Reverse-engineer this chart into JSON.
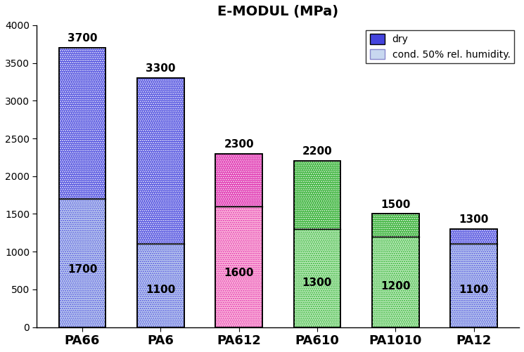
{
  "categories": [
    "PA66",
    "PA6",
    "PA612",
    "PA610",
    "PA1010",
    "PA12"
  ],
  "bottom_values": [
    1700,
    1100,
    1600,
    1300,
    1200,
    1100
  ],
  "top_values": [
    2000,
    2200,
    700,
    900,
    300,
    200
  ],
  "totals": [
    3700,
    3300,
    2300,
    2200,
    1500,
    1300
  ],
  "bottom_colors": [
    "#c8d8f0",
    "#c8d8f0",
    "#ffc8e0",
    "#c8f0c8",
    "#c8f0c8",
    "#c8d8f0"
  ],
  "top_colors": [
    "#4444dd",
    "#4444dd",
    "#dd22aa",
    "#22aa22",
    "#22aa22",
    "#4444dd"
  ],
  "bar_edge_colors": [
    "#000000",
    "#000000",
    "#000000",
    "#000000",
    "#000000",
    "#000000"
  ],
  "title": "E-MODUL (MPa)",
  "title_fontsize": 14,
  "ylim": [
    0,
    4000
  ],
  "yticks": [
    0,
    500,
    1000,
    1500,
    2000,
    2500,
    3000,
    3500,
    4000
  ],
  "legend_dry_color": "#4444dd",
  "legend_cond_color": "#c8d8f0",
  "legend_dry_edge": "#000080",
  "legend_cond_edge": "#8888cc",
  "label_fontsize": 11,
  "xlabel_fontsize": 13,
  "bar_width": 0.6
}
